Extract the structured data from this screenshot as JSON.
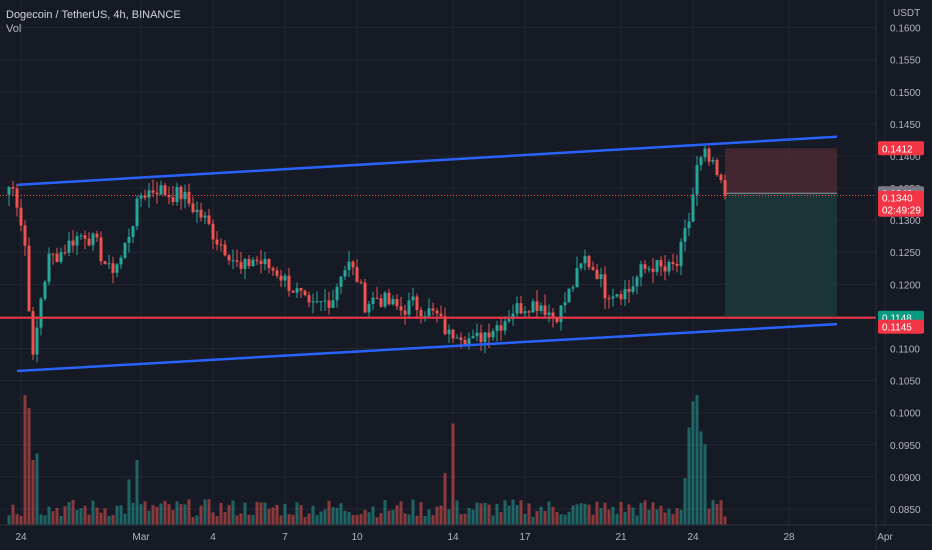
{
  "legend": {
    "title": "Dogecoin / TetherUS, 4h, BINANCE",
    "sub": "Vol"
  },
  "colors": {
    "background": "#161a25",
    "grid": "#232734",
    "up": "#26a69a",
    "down": "#ef5350",
    "channel": "#2962ff",
    "support": "#f23645",
    "stop_zone": "#4a2a32",
    "target_zone": "#1c3b3b"
  },
  "chart_data": {
    "type": "candlestick",
    "symbol": "Dogecoin / TetherUS",
    "interval": "4h",
    "exchange": "BINANCE",
    "y_axis": {
      "unit": "USDT",
      "ticks": [
        "0.1600",
        "0.1550",
        "0.1500",
        "0.1450",
        "0.1400",
        "0.1350",
        "0.1300",
        "0.1250",
        "0.1200",
        "0.1150",
        "0.1100",
        "0.1050",
        "0.1000",
        "0.0950",
        "0.0900",
        "0.0850"
      ],
      "range": [
        0.0825,
        0.1615
      ]
    },
    "x_axis": {
      "ticks": [
        {
          "label": "24",
          "index": 4
        },
        {
          "label": "Mar",
          "index": 34
        },
        {
          "label": "4",
          "index": 52
        },
        {
          "label": "7",
          "index": 70
        },
        {
          "label": "10",
          "index": 88
        },
        {
          "label": "14",
          "index": 112
        },
        {
          "label": "17",
          "index": 130
        },
        {
          "label": "21",
          "index": 154
        },
        {
          "label": "24",
          "index": 172
        },
        {
          "label": "28",
          "index": 196
        },
        {
          "label": "Apr",
          "index": 220
        }
      ]
    },
    "anchors": [
      {
        "i": 0,
        "v": 0.134
      },
      {
        "i": 2,
        "v": 0.136
      },
      {
        "i": 5,
        "v": 0.126
      },
      {
        "i": 7,
        "v": 0.108
      },
      {
        "i": 9,
        "v": 0.118
      },
      {
        "i": 11,
        "v": 0.124
      },
      {
        "i": 14,
        "v": 0.125
      },
      {
        "i": 17,
        "v": 0.127
      },
      {
        "i": 20,
        "v": 0.128
      },
      {
        "i": 23,
        "v": 0.126
      },
      {
        "i": 26,
        "v": 0.122
      },
      {
        "i": 29,
        "v": 0.124
      },
      {
        "i": 31,
        "v": 0.128
      },
      {
        "i": 34,
        "v": 0.134
      },
      {
        "i": 38,
        "v": 0.135
      },
      {
        "i": 41,
        "v": 0.134
      },
      {
        "i": 44,
        "v": 0.134
      },
      {
        "i": 47,
        "v": 0.132
      },
      {
        "i": 50,
        "v": 0.13
      },
      {
        "i": 53,
        "v": 0.127
      },
      {
        "i": 56,
        "v": 0.125
      },
      {
        "i": 59,
        "v": 0.122
      },
      {
        "i": 62,
        "v": 0.124
      },
      {
        "i": 65,
        "v": 0.123
      },
      {
        "i": 68,
        "v": 0.122
      },
      {
        "i": 71,
        "v": 0.12
      },
      {
        "i": 74,
        "v": 0.118
      },
      {
        "i": 76,
        "v": 0.116
      },
      {
        "i": 79,
        "v": 0.117
      },
      {
        "i": 82,
        "v": 0.118
      },
      {
        "i": 84,
        "v": 0.122
      },
      {
        "i": 86,
        "v": 0.123
      },
      {
        "i": 88,
        "v": 0.121
      },
      {
        "i": 90,
        "v": 0.117
      },
      {
        "i": 93,
        "v": 0.118
      },
      {
        "i": 96,
        "v": 0.117
      },
      {
        "i": 99,
        "v": 0.116
      },
      {
        "i": 102,
        "v": 0.117
      },
      {
        "i": 105,
        "v": 0.116
      },
      {
        "i": 108,
        "v": 0.115
      },
      {
        "i": 111,
        "v": 0.112
      },
      {
        "i": 113,
        "v": 0.113
      },
      {
        "i": 115,
        "v": 0.112
      },
      {
        "i": 117,
        "v": 0.111
      },
      {
        "i": 119,
        "v": 0.112
      },
      {
        "i": 121,
        "v": 0.113
      },
      {
        "i": 124,
        "v": 0.114
      },
      {
        "i": 127,
        "v": 0.116
      },
      {
        "i": 131,
        "v": 0.117
      },
      {
        "i": 134,
        "v": 0.117
      },
      {
        "i": 137,
        "v": 0.115
      },
      {
        "i": 139,
        "v": 0.116
      },
      {
        "i": 142,
        "v": 0.12
      },
      {
        "i": 145,
        "v": 0.124
      },
      {
        "i": 148,
        "v": 0.122
      },
      {
        "i": 150,
        "v": 0.119
      },
      {
        "i": 153,
        "v": 0.119
      },
      {
        "i": 156,
        "v": 0.119
      },
      {
        "i": 159,
        "v": 0.122
      },
      {
        "i": 162,
        "v": 0.123
      },
      {
        "i": 165,
        "v": 0.122
      },
      {
        "i": 168,
        "v": 0.123
      },
      {
        "i": 171,
        "v": 0.13
      },
      {
        "i": 173,
        "v": 0.138
      },
      {
        "i": 175,
        "v": 0.14
      },
      {
        "i": 177,
        "v": 0.138
      },
      {
        "i": 180,
        "v": 0.134
      }
    ],
    "volume_spikes": [
      {
        "i": 5,
        "v": 1.0
      },
      {
        "i": 6,
        "v": 0.9
      },
      {
        "i": 7,
        "v": 0.5
      },
      {
        "i": 8,
        "v": 0.55
      },
      {
        "i": 31,
        "v": 0.35
      },
      {
        "i": 33,
        "v": 0.5
      },
      {
        "i": 110,
        "v": 0.4
      },
      {
        "i": 112,
        "v": 0.78
      },
      {
        "i": 171,
        "v": 0.75
      },
      {
        "i": 172,
        "v": 0.95
      },
      {
        "i": 173,
        "v": 1.0
      },
      {
        "i": 174,
        "v": 0.72
      },
      {
        "i": 175,
        "v": 0.62
      },
      {
        "i": 170,
        "v": 0.36
      }
    ],
    "drawings": {
      "channel_upper": [
        {
          "i": 3,
          "v": 0.1355
        },
        {
          "i": 208,
          "v": 0.143
        }
      ],
      "channel_lower": [
        {
          "i": 3,
          "v": 0.1065
        },
        {
          "i": 208,
          "v": 0.1138
        }
      ],
      "support_level": 0.1148,
      "position": {
        "start_index": 180,
        "end_index": 208,
        "entry": 0.1342,
        "stop": 0.1412,
        "target": 0.1148
      }
    },
    "price_tags": [
      {
        "label": "0.1412",
        "value": 0.1412,
        "color": "#f23645"
      },
      {
        "label": "0.1342",
        "value": 0.1342,
        "color": "#787b86"
      },
      {
        "label": "0.1340",
        "value": 0.1335,
        "color": "#f23645",
        "extra": "02:49:29"
      },
      {
        "label": "0.1148",
        "value": 0.1148,
        "color": "#089981"
      },
      {
        "label": "0.1145",
        "value": 0.1134,
        "color": "#f23645"
      }
    ]
  }
}
